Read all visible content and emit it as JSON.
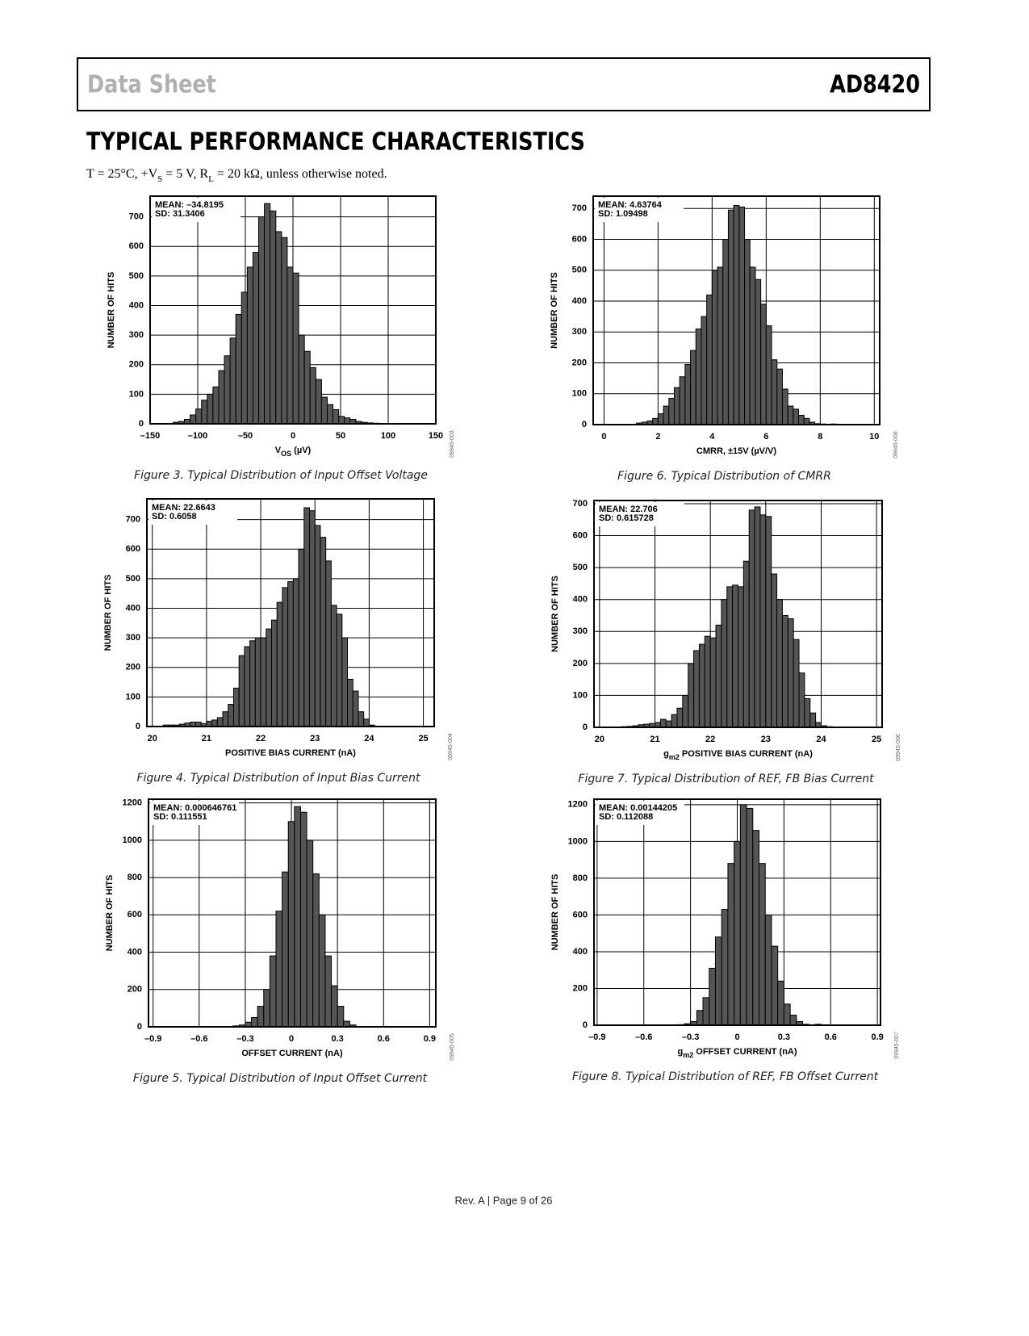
{
  "header": {
    "left": "Data Sheet",
    "right": "AD8420"
  },
  "section_title": "TYPICAL PERFORMANCE CHARACTERISTICS",
  "conditions": [
    "T = 25°C, +V",
    "S",
    " = 5 V, R",
    "L",
    " = 20 kΩ, unless otherwise noted."
  ],
  "footer": "Rev. A | Page 9 of 26",
  "chart_data": [
    {
      "type": "histogram",
      "caption": "Figure 3. Typical Distribution of Input Offset Voltage",
      "annotations": [
        "MEAN: –34.8195",
        "SD: 31.3406"
      ],
      "figure_code": "09945-003",
      "xlabel": [
        "V",
        "OS",
        " (µV)"
      ],
      "ylabel": "NUMBER OF HITS",
      "color": "#555555",
      "grid": true,
      "xlim": [
        -150,
        150
      ],
      "ylim": [
        0,
        770
      ],
      "xticks": [
        {
          "value": -150,
          "label": "–150"
        },
        {
          "value": -100,
          "label": "–100"
        },
        {
          "value": -50,
          "label": "–50"
        },
        0,
        50,
        100,
        150
      ],
      "yticks": [
        0,
        100,
        200,
        300,
        400,
        500,
        600,
        700
      ],
      "bins": [
        -126,
        -120,
        -114,
        -108,
        -102,
        -96,
        -90,
        -84,
        -78,
        -72,
        -66,
        -60,
        -54,
        -48,
        -42,
        -36,
        -30,
        -24,
        -18,
        -12,
        -6,
        0,
        6,
        12,
        18,
        24,
        30,
        36,
        42,
        48,
        54,
        60,
        66,
        72,
        78,
        84,
        90,
        96
      ],
      "values": [
        5,
        8,
        15,
        30,
        50,
        80,
        100,
        125,
        180,
        230,
        290,
        370,
        445,
        530,
        580,
        700,
        745,
        720,
        650,
        630,
        530,
        510,
        300,
        245,
        190,
        150,
        90,
        65,
        48,
        25,
        20,
        15,
        8,
        5,
        3,
        2,
        1
      ]
    },
    {
      "type": "histogram",
      "caption": "Figure 4. Typical Distribution of Input Bias Current",
      "annotations": [
        "MEAN: 22.6643",
        "SD: 0.6058"
      ],
      "figure_code": "09945-004",
      "xlabel": "POSITIVE BIAS CURRENT (nA)",
      "ylabel": "NUMBER OF HITS",
      "color": "#555555",
      "grid": true,
      "xlim": [
        19.9,
        25.2
      ],
      "ylim": [
        0,
        770
      ],
      "xticks": [
        20,
        21,
        22,
        23,
        24,
        25
      ],
      "yticks": [
        0,
        100,
        200,
        300,
        400,
        500,
        600,
        700
      ],
      "bins": [
        20.2,
        20.3,
        20.4,
        20.5,
        20.6,
        20.7,
        20.8,
        20.9,
        21,
        21.1,
        21.2,
        21.3,
        21.4,
        21.5,
        21.6,
        21.7,
        21.8,
        21.9,
        22,
        22.1,
        22.2,
        22.3,
        22.4,
        22.5,
        22.6,
        22.7,
        22.8,
        22.9,
        23,
        23.1,
        23.2,
        23.3,
        23.4,
        23.5,
        23.6,
        23.7,
        23.8,
        23.9,
        24,
        24.1
      ],
      "values": [
        5,
        5,
        5,
        8,
        12,
        15,
        15,
        10,
        18,
        22,
        30,
        50,
        75,
        130,
        240,
        270,
        290,
        300,
        300,
        330,
        360,
        420,
        470,
        490,
        500,
        600,
        740,
        730,
        680,
        640,
        560,
        410,
        380,
        300,
        160,
        120,
        50,
        25,
        5
      ]
    },
    {
      "type": "histogram",
      "caption": "Figure 5. Typical Distribution of Input Offset Current",
      "annotations": [
        "MEAN: 0.000646761",
        "SD: 0.111551"
      ],
      "figure_code": "09945-005",
      "xlabel": "OFFSET CURRENT (nA)",
      "ylabel": "NUMBER OF HITS",
      "color": "#555555",
      "grid": true,
      "xlim": [
        -0.93,
        0.94
      ],
      "ylim": [
        0,
        1220
      ],
      "xticks": [
        {
          "value": -0.9,
          "label": "–0.9"
        },
        {
          "value": -0.6,
          "label": "–0.6"
        },
        {
          "value": -0.3,
          "label": "–0.3"
        },
        0,
        0.3,
        0.6,
        0.9
      ],
      "yticks": [
        0,
        200,
        400,
        600,
        800,
        1000,
        1200
      ],
      "bins": [
        -0.42,
        -0.38,
        -0.34,
        -0.3,
        -0.26,
        -0.22,
        -0.18,
        -0.14,
        -0.1,
        -0.06,
        -0.02,
        0.02,
        0.06,
        0.1,
        0.14,
        0.18,
        0.22,
        0.26,
        0.3,
        0.34,
        0.38,
        0.42
      ],
      "values": [
        2,
        5,
        10,
        25,
        50,
        110,
        200,
        380,
        620,
        830,
        1100,
        1180,
        1150,
        1000,
        820,
        600,
        380,
        220,
        110,
        30,
        10
      ]
    },
    {
      "type": "histogram",
      "caption": "Figure 6. Typical Distribution of CMRR",
      "annotations": [
        "MEAN: 4.63764",
        "SD: 1.09498"
      ],
      "figure_code": "09945-008",
      "xlabel": "CMRR, ±15V (µV/V)",
      "ylabel": "NUMBER OF HITS",
      "color": "#555555",
      "grid": true,
      "xlim": [
        -0.4,
        10.2
      ],
      "ylim": [
        0,
        740
      ],
      "xticks": [
        0,
        2,
        4,
        6,
        8,
        10
      ],
      "yticks": [
        0,
        100,
        200,
        300,
        400,
        500,
        600,
        700
      ],
      "bins": [
        1.2,
        1.4,
        1.6,
        1.8,
        2,
        2.2,
        2.4,
        2.6,
        2.8,
        3,
        3.2,
        3.4,
        3.6,
        3.8,
        4,
        4.2,
        4.4,
        4.6,
        4.8,
        5,
        5.2,
        5.4,
        5.6,
        5.8,
        6,
        6.2,
        6.4,
        6.6,
        6.8,
        7,
        7.2,
        7.4,
        7.6,
        7.8,
        8,
        8.2,
        8.4,
        8.6
      ],
      "values": [
        5,
        8,
        12,
        20,
        35,
        60,
        85,
        120,
        155,
        195,
        240,
        310,
        350,
        420,
        500,
        510,
        600,
        695,
        710,
        705,
        600,
        510,
        470,
        390,
        320,
        210,
        180,
        115,
        60,
        50,
        30,
        20,
        8,
        3,
        2,
        0,
        2
      ]
    },
    {
      "type": "histogram",
      "caption": "Figure 7. Typical Distribution of REF, FB Bias Current",
      "annotations": [
        "MEAN: 22.706",
        "SD: 0.615728"
      ],
      "figure_code": "09945-006",
      "xlabel": [
        "g",
        "m2",
        " POSITIVE BIAS CURRENT (nA)"
      ],
      "ylabel": "NUMBER OF HITS",
      "color": "#555555",
      "grid": true,
      "xlim": [
        19.9,
        25.1
      ],
      "ylim": [
        0,
        710
      ],
      "xticks": [
        20,
        21,
        22,
        23,
        24,
        25
      ],
      "yticks": [
        0,
        100,
        200,
        300,
        400,
        500,
        600,
        700
      ],
      "bins": [
        20.4,
        20.5,
        20.6,
        20.7,
        20.8,
        20.9,
        21,
        21.1,
        21.2,
        21.3,
        21.4,
        21.5,
        21.6,
        21.7,
        21.8,
        21.9,
        22,
        22.1,
        22.2,
        22.3,
        22.4,
        22.5,
        22.6,
        22.7,
        22.8,
        22.9,
        23,
        23.1,
        23.2,
        23.3,
        23.4,
        23.5,
        23.6,
        23.7,
        23.8,
        23.9,
        24,
        24.1,
        24.2
      ],
      "values": [
        2,
        3,
        5,
        8,
        10,
        12,
        15,
        25,
        20,
        40,
        60,
        100,
        200,
        240,
        260,
        285,
        280,
        320,
        400,
        440,
        445,
        440,
        520,
        680,
        690,
        665,
        660,
        480,
        400,
        350,
        340,
        275,
        170,
        90,
        45,
        15,
        5,
        2
      ]
    },
    {
      "type": "histogram",
      "caption": "Figure 8. Typical Distribution of REF, FB Offset Current",
      "annotations": [
        "MEAN: 0.00144205",
        "SD: 0.112088"
      ],
      "figure_code": "09945-007",
      "xlabel": [
        "g",
        "m2",
        " OFFSET CURRENT (nA)"
      ],
      "ylabel": "NUMBER OF HITS",
      "color": "#555555",
      "grid": true,
      "xlim": [
        -0.92,
        0.92
      ],
      "ylim": [
        0,
        1230
      ],
      "xticks": [
        {
          "value": -0.9,
          "label": "–0.9"
        },
        {
          "value": -0.6,
          "label": "–0.6"
        },
        {
          "value": -0.3,
          "label": "–0.3"
        },
        0,
        0.3,
        0.6,
        0.9
      ],
      "yticks": [
        0,
        200,
        400,
        600,
        800,
        1000,
        1200
      ],
      "bins": [
        -0.38,
        -0.34,
        -0.3,
        -0.26,
        -0.22,
        -0.18,
        -0.14,
        -0.1,
        -0.06,
        -0.02,
        0.02,
        0.06,
        0.1,
        0.14,
        0.18,
        0.22,
        0.26,
        0.3,
        0.34,
        0.38,
        0.42,
        0.46,
        0.5,
        0.54
      ],
      "values": [
        3,
        8,
        20,
        80,
        150,
        310,
        480,
        630,
        880,
        1000,
        1200,
        1180,
        1060,
        880,
        600,
        430,
        240,
        115,
        55,
        20,
        5,
        0,
        5
      ]
    }
  ]
}
